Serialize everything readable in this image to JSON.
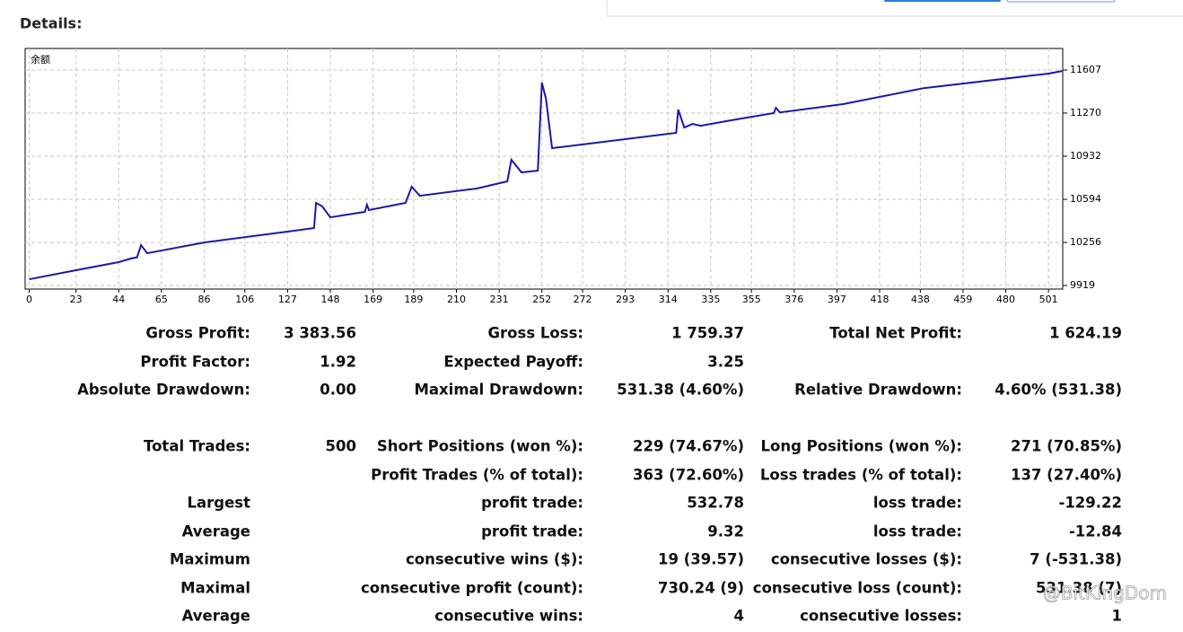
{
  "header": {
    "title": "Details:"
  },
  "chart_data": {
    "type": "line",
    "series": [
      {
        "name": "余额",
        "color": "#1a1aa6",
        "x": [
          0,
          23,
          44,
          50,
          53,
          55,
          58,
          86,
          127,
          140,
          141,
          144,
          148,
          165,
          166,
          167,
          185,
          188,
          192,
          220,
          235,
          237,
          242,
          250,
          252,
          254,
          257,
          318,
          319,
          322,
          326,
          330,
          345,
          366,
          367,
          369,
          400,
          440,
          501,
          508
        ],
        "values": [
          9968,
          10039,
          10102,
          10130,
          10140,
          10235,
          10172,
          10256,
          10341,
          10369,
          10566,
          10540,
          10453,
          10496,
          10552,
          10510,
          10566,
          10693,
          10622,
          10679,
          10735,
          10904,
          10805,
          10819,
          11508,
          11382,
          10995,
          11115,
          11297,
          11157,
          11185,
          11170,
          11213,
          11270,
          11311,
          11275,
          11340,
          11466,
          11579,
          11600
        ]
      }
    ],
    "xlim": [
      -2,
      508
    ],
    "ylim": [
      9891,
      11776
    ],
    "xticks": [
      0,
      23,
      44,
      65,
      86,
      106,
      127,
      148,
      169,
      189,
      210,
      231,
      252,
      272,
      293,
      314,
      335,
      355,
      376,
      397,
      418,
      438,
      459,
      480,
      501
    ],
    "yticks": [
      9919,
      10256,
      10594,
      10932,
      11270,
      11607
    ],
    "grid": true
  },
  "table": {
    "rows": [
      [
        "Gross Profit:",
        "3 383.56",
        "Gross Loss:",
        "1 759.37",
        "Total Net Profit:",
        "1 624.19"
      ],
      [
        "Profit Factor:",
        "1.92",
        "Expected Payoff:",
        "3.25",
        null,
        null
      ],
      [
        "Absolute Drawdown:",
        "0.00",
        "Maximal Drawdown:",
        "531.38 (4.60%)",
        "Relative Drawdown:",
        "4.60% (531.38)"
      ],
      [
        "Total Trades:",
        "500",
        "Short Positions (won %):",
        "229 (74.67%)",
        "Long Positions (won %):",
        "271 (70.85%)"
      ],
      [
        null,
        null,
        "Profit Trades (% of total):",
        "363 (72.60%)",
        "Loss trades (% of total):",
        "137 (27.40%)"
      ],
      [
        "Largest",
        null,
        "profit trade:",
        "532.78",
        "loss trade:",
        "-129.22"
      ],
      [
        "Average",
        null,
        "profit trade:",
        "9.32",
        "loss trade:",
        "-12.84"
      ],
      [
        "Maximum",
        null,
        "consecutive wins ($):",
        "19 (39.57)",
        "consecutive losses ($):",
        "7 (-531.38)"
      ],
      [
        "Maximal",
        null,
        "consecutive profit (count):",
        "730.24 (9)",
        "consecutive loss (count):",
        "531.38 (7)"
      ],
      [
        "Average",
        null,
        "consecutive wins:",
        "4",
        "consecutive losses:",
        "1"
      ]
    ]
  },
  "watermark": "@BitKingDom"
}
